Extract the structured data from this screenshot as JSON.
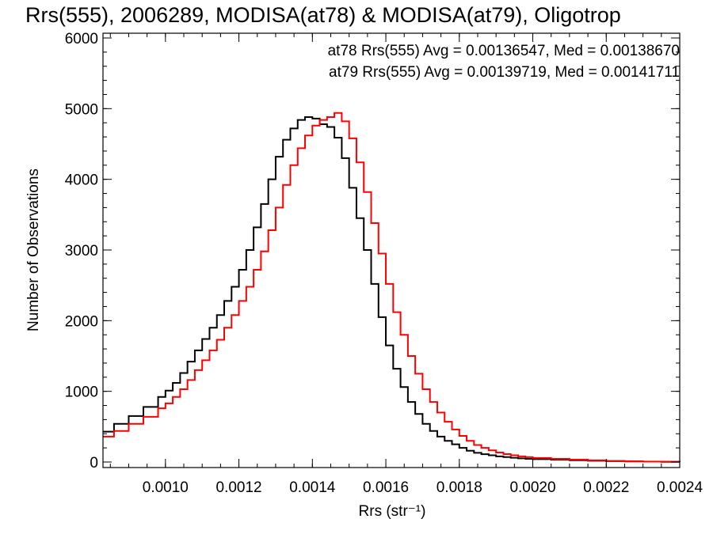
{
  "chart_data": {
    "type": "line",
    "title": "Rrs(555), 2006289, MODISA(at78) & MODISA(at79), Oligotrop",
    "xlabel": "Rrs (str⁻¹)",
    "ylabel": "Number of Observations",
    "xlim": [
      0.00083,
      0.0024
    ],
    "ylim": [
      0,
      6000
    ],
    "x_ticks": [
      "0.0010",
      "0.0012",
      "0.0014",
      "0.0016",
      "0.0018",
      "0.0020",
      "0.0022",
      "0.0024"
    ],
    "y_ticks": [
      "0",
      "1000",
      "2000",
      "3000",
      "4000",
      "5000",
      "6000"
    ],
    "grid": false,
    "annotations": [
      {
        "text": "at78 Rrs(555) Avg = 0.00136547, Med = 0.00138670",
        "color": "#000000"
      },
      {
        "text": "at79 Rrs(555) Avg = 0.00139719, Med = 0.00141711",
        "color": "#ff0000"
      }
    ],
    "series": [
      {
        "color": "#000000",
        "style": "step",
        "x": [
          0.00083,
          0.00086,
          0.0009,
          0.00094,
          0.00098,
          0.001,
          0.00102,
          0.00104,
          0.00106,
          0.00108,
          0.0011,
          0.00112,
          0.00114,
          0.00116,
          0.00118,
          0.0012,
          0.00122,
          0.00124,
          0.00126,
          0.00128,
          0.0013,
          0.00132,
          0.00134,
          0.00136,
          0.00138,
          0.0014,
          0.00142,
          0.00144,
          0.00146,
          0.00148,
          0.0015,
          0.00152,
          0.00154,
          0.00156,
          0.00158,
          0.0016,
          0.00162,
          0.00164,
          0.00166,
          0.00168,
          0.0017,
          0.00172,
          0.00174,
          0.00176,
          0.00178,
          0.0018,
          0.00182,
          0.00184,
          0.00186,
          0.00188,
          0.0019,
          0.00192,
          0.00194,
          0.00196,
          0.00198,
          0.002,
          0.00205,
          0.0021,
          0.00215,
          0.0022,
          0.00225,
          0.0023,
          0.00235,
          0.0024
        ],
        "y": [
          430,
          540,
          650,
          780,
          920,
          1010,
          1120,
          1260,
          1420,
          1580,
          1740,
          1900,
          2080,
          2280,
          2480,
          2720,
          3000,
          3320,
          3650,
          4000,
          4320,
          4560,
          4720,
          4840,
          4880,
          4860,
          4780,
          4740,
          4590,
          4300,
          3880,
          3450,
          3000,
          2520,
          2050,
          1650,
          1320,
          1060,
          850,
          680,
          540,
          440,
          360,
          300,
          250,
          200,
          160,
          130,
          110,
          95,
          80,
          70,
          60,
          52,
          45,
          40,
          32,
          25,
          18,
          12,
          8,
          5,
          3,
          2
        ]
      },
      {
        "color": "#ff0000",
        "style": "step",
        "x": [
          0.00083,
          0.00086,
          0.0009,
          0.00094,
          0.00098,
          0.001,
          0.00102,
          0.00104,
          0.00106,
          0.00108,
          0.0011,
          0.00112,
          0.00114,
          0.00116,
          0.00118,
          0.0012,
          0.00122,
          0.00124,
          0.00126,
          0.00128,
          0.0013,
          0.00132,
          0.00134,
          0.00136,
          0.00138,
          0.0014,
          0.00142,
          0.00144,
          0.00146,
          0.00148,
          0.0015,
          0.00152,
          0.00154,
          0.00156,
          0.00158,
          0.0016,
          0.00162,
          0.00164,
          0.00166,
          0.00168,
          0.0017,
          0.00172,
          0.00174,
          0.00176,
          0.00178,
          0.0018,
          0.00182,
          0.00184,
          0.00186,
          0.00188,
          0.0019,
          0.00192,
          0.00194,
          0.00196,
          0.00198,
          0.002,
          0.00205,
          0.0021,
          0.00215,
          0.0022,
          0.00225,
          0.0023,
          0.00235,
          0.0024
        ],
        "y": [
          360,
          440,
          540,
          640,
          760,
          830,
          920,
          1030,
          1160,
          1300,
          1440,
          1580,
          1730,
          1900,
          2080,
          2280,
          2480,
          2720,
          2980,
          3280,
          3600,
          3920,
          4200,
          4440,
          4620,
          4760,
          4840,
          4880,
          4940,
          4820,
          4580,
          4240,
          3820,
          3380,
          2950,
          2520,
          2120,
          1800,
          1500,
          1250,
          1030,
          850,
          700,
          570,
          460,
          370,
          300,
          240,
          200,
          165,
          135,
          112,
          95,
          80,
          68,
          58,
          45,
          34,
          24,
          16,
          10,
          6,
          4,
          2
        ]
      }
    ]
  }
}
